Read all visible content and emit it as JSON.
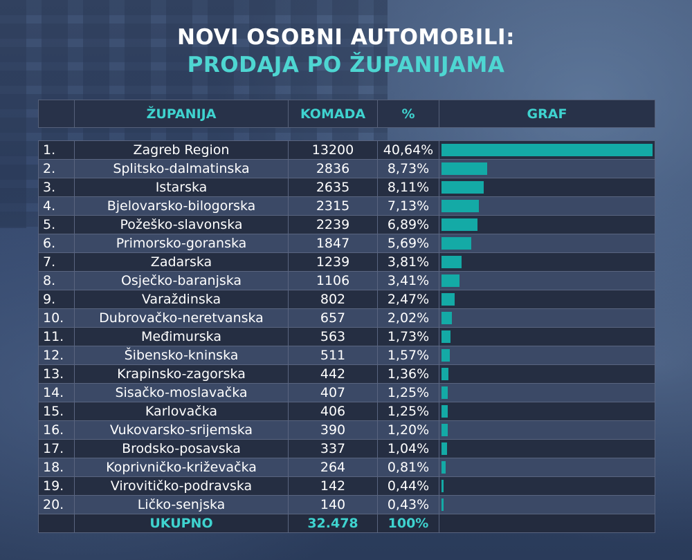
{
  "title_line1": "NOVI OSOBNI AUTOMOBILI:",
  "title_line2": "PRODAJA PO ŽUPANIJAMA",
  "colors": {
    "accent": "#3fd3cf",
    "bar": "#14aaa6",
    "row_dark": "#252e42",
    "row_light": "#3b4966"
  },
  "table": {
    "headers": [
      "",
      "ŽUPANIJA",
      "KOMADA",
      "%",
      "GRAF"
    ],
    "total": {
      "label": "UKUPNO",
      "komada": "32.478",
      "percent": "100%"
    }
  },
  "chart_data": {
    "type": "bar",
    "orientation": "horizontal",
    "rows": [
      {
        "rank": "1.",
        "zupanija": "Zagreb Region",
        "komada": "13200",
        "percent": "40,64%",
        "value": 40.64
      },
      {
        "rank": "2.",
        "zupanija": "Splitsko-dalmatinska",
        "komada": "2836",
        "percent": "8,73%",
        "value": 8.73
      },
      {
        "rank": "3.",
        "zupanija": "Istarska",
        "komada": "2635",
        "percent": "8,11%",
        "value": 8.11
      },
      {
        "rank": "4.",
        "zupanija": "Bjelovarsko-bilogorska",
        "komada": "2315",
        "percent": "7,13%",
        "value": 7.13
      },
      {
        "rank": "5.",
        "zupanija": "Požeško-slavonska",
        "komada": "2239",
        "percent": "6,89%",
        "value": 6.89
      },
      {
        "rank": "6.",
        "zupanija": "Primorsko-goranska",
        "komada": "1847",
        "percent": "5,69%",
        "value": 5.69
      },
      {
        "rank": "7.",
        "zupanija": "Zadarska",
        "komada": "1239",
        "percent": "3,81%",
        "value": 3.81
      },
      {
        "rank": "8.",
        "zupanija": "Osječko-baranjska",
        "komada": "1106",
        "percent": "3,41%",
        "value": 3.41
      },
      {
        "rank": "9.",
        "zupanija": "Varaždinska",
        "komada": "802",
        "percent": "2,47%",
        "value": 2.47
      },
      {
        "rank": "10.",
        "zupanija": "Dubrovačko-neretvanska",
        "komada": "657",
        "percent": "2,02%",
        "value": 2.02
      },
      {
        "rank": "11.",
        "zupanija": "Međimurska",
        "komada": "563",
        "percent": "1,73%",
        "value": 1.73
      },
      {
        "rank": "12.",
        "zupanija": "Šibensko-kninska",
        "komada": "511",
        "percent": "1,57%",
        "value": 1.57
      },
      {
        "rank": "13.",
        "zupanija": "Krapinsko-zagorska",
        "komada": "442",
        "percent": "1,36%",
        "value": 1.36
      },
      {
        "rank": "14.",
        "zupanija": "Sisačko-moslavačka",
        "komada": "407",
        "percent": "1,25%",
        "value": 1.25
      },
      {
        "rank": "15.",
        "zupanija": "Karlovačka",
        "komada": "406",
        "percent": "1,25%",
        "value": 1.25
      },
      {
        "rank": "16.",
        "zupanija": "Vukovarsko-srijemska",
        "komada": "390",
        "percent": "1,20%",
        "value": 1.2
      },
      {
        "rank": "17.",
        "zupanija": "Brodsko-posavska",
        "komada": "337",
        "percent": "1,04%",
        "value": 1.04
      },
      {
        "rank": "18.",
        "zupanija": "Koprivničko-križevačka",
        "komada": "264",
        "percent": "0,81%",
        "value": 0.81
      },
      {
        "rank": "19.",
        "zupanija": "Virovitičko-podravska",
        "komada": "142",
        "percent": "0,44%",
        "value": 0.44
      },
      {
        "rank": "20.",
        "zupanija": "Ličko-senjska",
        "komada": "140",
        "percent": "0,43%",
        "value": 0.43
      }
    ],
    "xlim": [
      0,
      40.64
    ]
  }
}
